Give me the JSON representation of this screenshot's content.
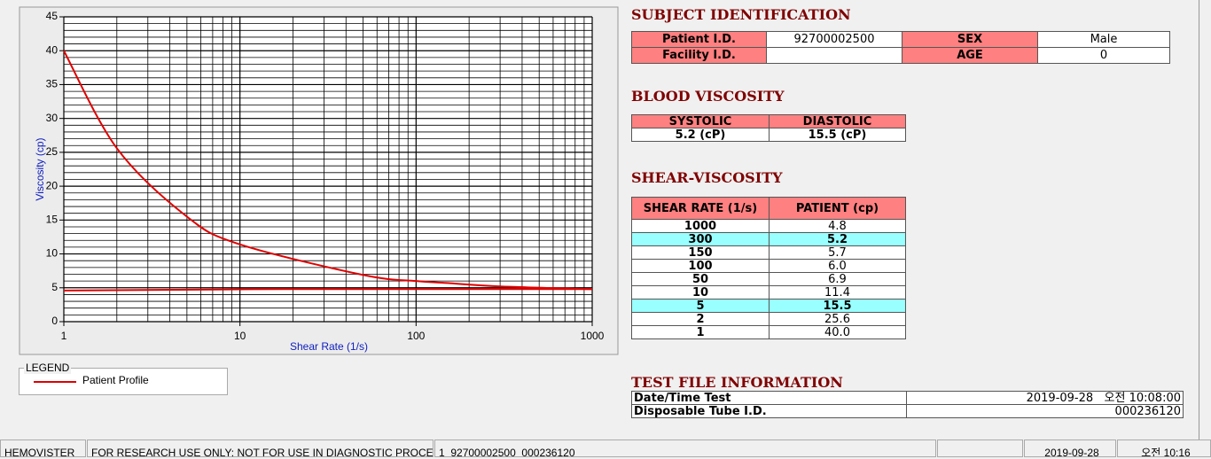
{
  "chart_data": {
    "type": "line",
    "xlabel": "Shear Rate (1/s)",
    "ylabel": "Viscosity (cp)",
    "log_x": true,
    "xlim": [
      1,
      1000
    ],
    "xticks": [
      1,
      10,
      100,
      1000
    ],
    "x_minor_grid": [
      2,
      3,
      4,
      5,
      6,
      7,
      8,
      9,
      20,
      30,
      40,
      50,
      60,
      70,
      80,
      90,
      200,
      300,
      400,
      500,
      600,
      700,
      800,
      900
    ],
    "ylim": [
      0,
      45
    ],
    "yticks": [
      0,
      5,
      10,
      15,
      20,
      25,
      30,
      35,
      40,
      45
    ],
    "y_minor_grid": [
      1,
      2,
      3,
      4,
      6,
      7,
      8,
      9,
      11,
      12,
      13,
      14,
      16,
      17,
      18,
      19,
      21,
      22,
      23,
      24,
      26,
      27,
      28,
      29,
      31,
      32,
      33,
      34,
      36,
      37,
      38,
      39,
      41,
      42,
      43,
      44
    ],
    "grid": true,
    "legend_title": "LEGEND",
    "series": [
      {
        "name": "Patient Profile",
        "color": "#e00000",
        "x": [
          1,
          2,
          5,
          10,
          50,
          100,
          150,
          300,
          1000
        ],
        "values": [
          40.0,
          25.6,
          15.5,
          11.4,
          6.9,
          6.0,
          5.7,
          5.2,
          4.8
        ]
      },
      {
        "color": "#e00000",
        "x": [
          1,
          18,
          1000
        ],
        "values": [
          4.6,
          4.8,
          4.8
        ]
      }
    ]
  },
  "subject": {
    "title": "SUBJECT IDENTIFICATION",
    "rows": [
      [
        {
          "label": "Patient I.D.",
          "value": "92700002500"
        },
        {
          "label": "SEX",
          "value": "Male"
        }
      ],
      [
        {
          "label": "Facility I.D."
        },
        {
          "label": "AGE",
          "value": "0"
        }
      ]
    ]
  },
  "blood": {
    "title": "BLOOD VISCOSITY",
    "headers": [
      "SYSTOLIC",
      "DIASTOLIC"
    ],
    "values": [
      "5.2 (cP)",
      "15.5 (cP)"
    ]
  },
  "shear": {
    "title": "SHEAR-VISCOSITY",
    "headers": [
      "SHEAR RATE (1/s)",
      "PATIENT (cp)"
    ],
    "rows": [
      {
        "rate": "1000",
        "value": "4.8"
      },
      {
        "rate": "300",
        "value": "5.2",
        "highlight": true
      },
      {
        "rate": "150",
        "value": "5.7"
      },
      {
        "rate": "100",
        "value": "6.0"
      },
      {
        "rate": "50",
        "value": "6.9"
      },
      {
        "rate": "10",
        "value": "11.4"
      },
      {
        "rate": "5",
        "value": "15.5",
        "highlight": true
      },
      {
        "rate": "2",
        "value": "25.6"
      },
      {
        "rate": "1",
        "value": "40.0"
      }
    ]
  },
  "test_file": {
    "title": "TEST FILE INFORMATION",
    "rows": [
      {
        "label": "Date/Time Test",
        "value": "2019-09-28   오전 10:08:00"
      },
      {
        "label": "Disposable Tube I.D.",
        "value": "000236120"
      }
    ]
  },
  "status_bar": [
    "HEMOVISTER",
    "FOR RESEARCH USE ONLY: NOT FOR USE IN DIAGNOSTIC PROCEDURES",
    "1  92700002500  000236120",
    "2019-09-28",
    "오전 10:16"
  ]
}
